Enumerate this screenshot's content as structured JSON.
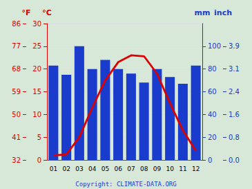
{
  "chart_data": {
    "type": "bar",
    "categories": [
      "01",
      "02",
      "03",
      "04",
      "05",
      "06",
      "07",
      "08",
      "09",
      "10",
      "11",
      "12"
    ],
    "series": [
      {
        "type": "bar",
        "axis": "y2",
        "color": "#1a3ccc",
        "values": [
          83,
          75,
          100,
          80,
          88,
          80,
          76,
          68,
          80,
          73,
          67,
          83
        ]
      },
      {
        "type": "line",
        "color": "#dd0000",
        "values": [
          1.0,
          1.2,
          5.0,
          11.5,
          17.5,
          21.5,
          23.0,
          22.8,
          19.0,
          12.5,
          6.5,
          2.0
        ]
      }
    ],
    "y_label": "°C",
    "ylim": [
      0,
      30
    ],
    "yticks": [
      0,
      5,
      10,
      15,
      20,
      25,
      30
    ],
    "y_color": "#dd0000",
    "y_alt_label": "°F",
    "y_alt_ticks": [
      {
        "value": 0,
        "label": "32"
      },
      {
        "value": 5,
        "label": "41"
      },
      {
        "value": 10,
        "label": "50"
      },
      {
        "value": 15,
        "label": "59"
      },
      {
        "value": 20,
        "label": "68"
      },
      {
        "value": 25,
        "label": "77"
      },
      {
        "value": 30,
        "label": "86"
      }
    ],
    "y2_label": "mm",
    "y2lim": [
      0,
      120
    ],
    "y2ticks": [
      0,
      20,
      40,
      60,
      80,
      100
    ],
    "y2_color": "#1a3ccc",
    "y2_alt_label": "inch",
    "y2_alt_ticks": [
      {
        "value": 0,
        "label": "0.0"
      },
      {
        "value": 20,
        "label": "0.8"
      },
      {
        "value": 40,
        "label": "1.6"
      },
      {
        "value": 60,
        "label": "2.4"
      },
      {
        "value": 80,
        "label": "3.1"
      },
      {
        "value": 100,
        "label": "3.9"
      }
    ],
    "annotations": [
      "Copyright: CLIMATE-DATA.ORG"
    ],
    "background_color": "#d8e8d8",
    "grid": true
  }
}
